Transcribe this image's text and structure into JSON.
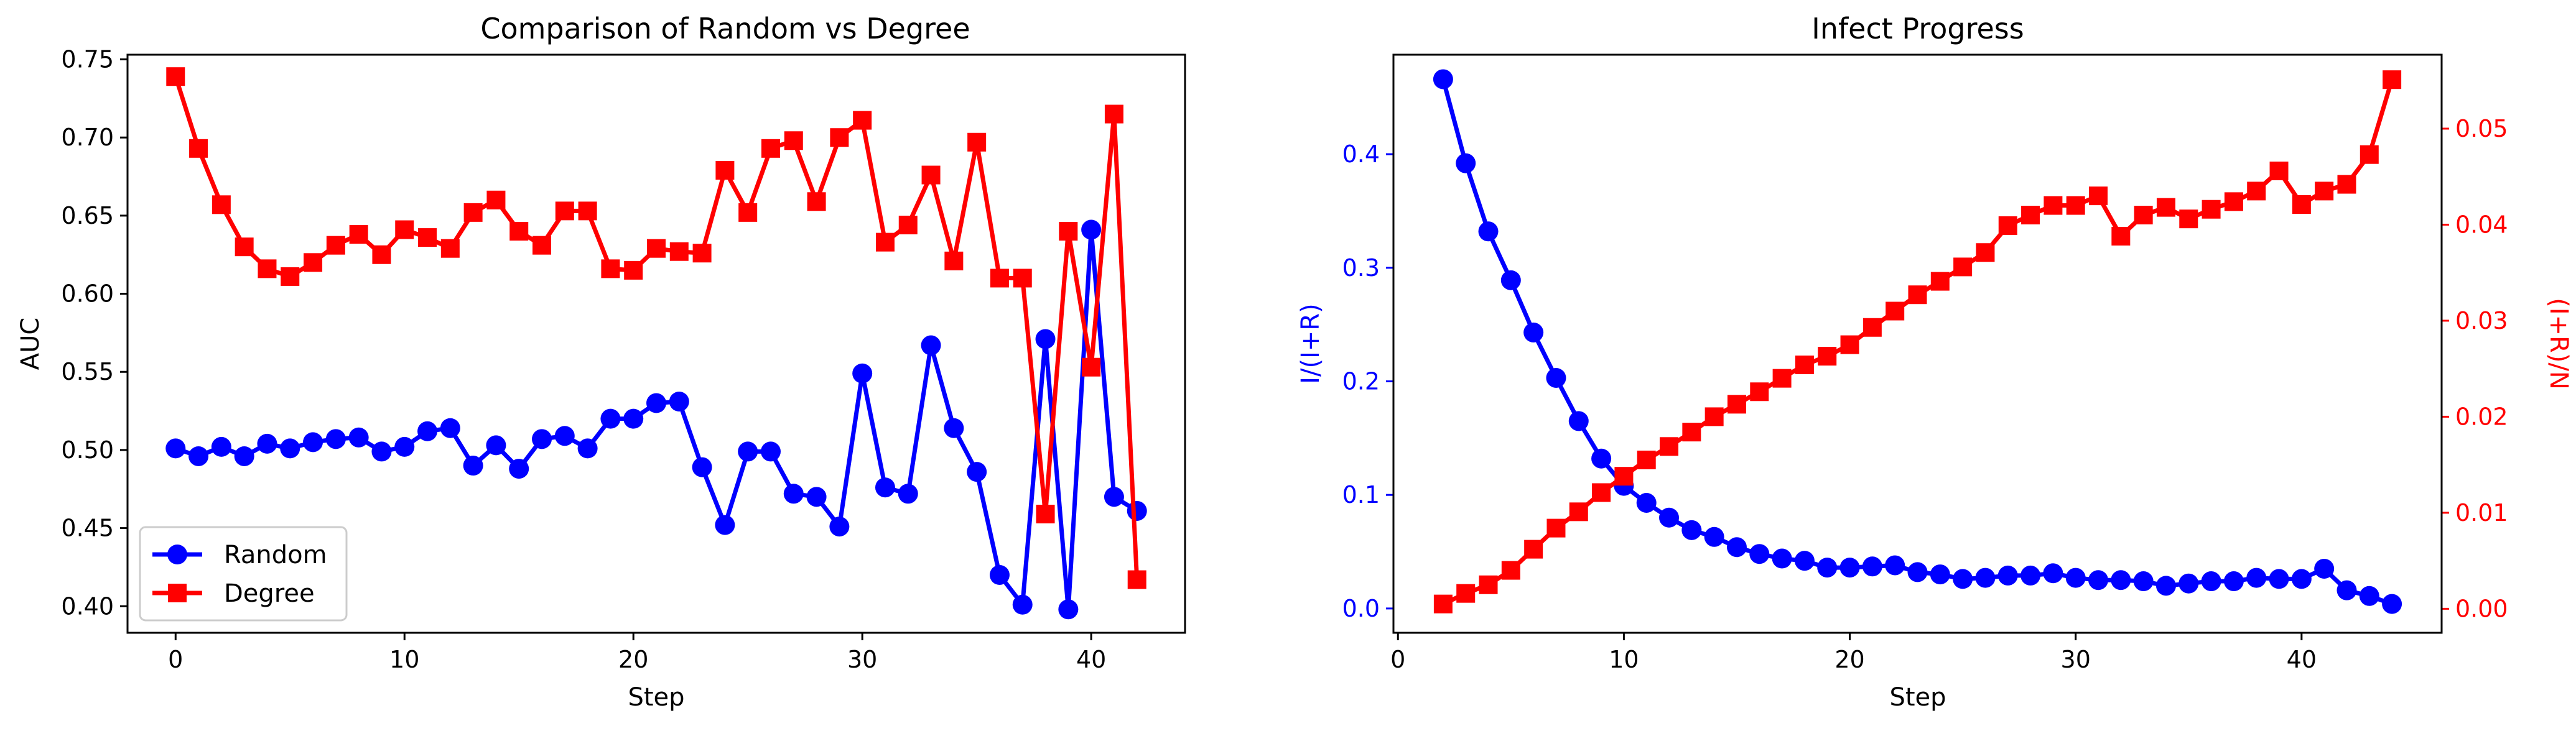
{
  "chart_data": [
    {
      "type": "line",
      "title": "Comparison of Random vs Degree",
      "xlabel": "Step",
      "ylabel": "AUC",
      "xlim": [
        -2.1,
        44.1
      ],
      "ylim": [
        0.383,
        0.753
      ],
      "xticks": [
        0,
        10,
        20,
        30,
        40
      ],
      "yticks": [
        0.4,
        0.45,
        0.5,
        0.55,
        0.6,
        0.65,
        0.7,
        0.75
      ],
      "ytick_labels": [
        "0.40",
        "0.45",
        "0.50",
        "0.55",
        "0.60",
        "0.65",
        "0.70",
        "0.75"
      ],
      "grid": false,
      "legend": "lower-left",
      "x": [
        0,
        1,
        2,
        3,
        4,
        5,
        6,
        7,
        8,
        9,
        10,
        11,
        12,
        13,
        14,
        15,
        16,
        17,
        18,
        19,
        20,
        21,
        22,
        23,
        24,
        25,
        26,
        27,
        28,
        29,
        30,
        31,
        32,
        33,
        34,
        35,
        36,
        37,
        38,
        39,
        40,
        41,
        42
      ],
      "series": [
        {
          "name": "Random",
          "color": "#0000ff",
          "marker": "circle",
          "values": [
            0.501,
            0.496,
            0.502,
            0.496,
            0.504,
            0.501,
            0.505,
            0.507,
            0.508,
            0.499,
            0.502,
            0.512,
            0.514,
            0.49,
            0.503,
            0.488,
            0.507,
            0.509,
            0.501,
            0.52,
            0.52,
            0.53,
            0.531,
            0.489,
            0.452,
            0.499,
            0.499,
            0.472,
            0.47,
            0.451,
            0.549,
            0.476,
            0.472,
            0.567,
            0.514,
            0.486,
            0.42,
            0.401,
            0.571,
            0.398,
            0.641,
            0.47,
            0.461
          ]
        },
        {
          "name": "Degree",
          "color": "#ff0000",
          "marker": "square",
          "values": [
            0.739,
            0.693,
            0.657,
            0.63,
            0.616,
            0.611,
            0.62,
            0.631,
            0.638,
            0.625,
            0.641,
            0.636,
            0.629,
            0.652,
            0.66,
            0.64,
            0.631,
            0.653,
            0.653,
            0.616,
            0.615,
            0.629,
            0.627,
            0.626,
            0.679,
            0.652,
            0.693,
            0.698,
            0.659,
            0.7,
            0.711,
            0.633,
            0.644,
            0.676,
            0.621,
            0.697,
            0.61,
            0.61,
            0.459,
            0.64,
            0.553,
            0.715,
            0.417
          ]
        }
      ]
    },
    {
      "type": "line",
      "title": "Infect Progress",
      "xlabel": "Step",
      "ylabel": "I/(I+R)",
      "ylabel_right": "(I+R)/N",
      "xlim": [
        -0.2,
        46.2
      ],
      "ylim": [
        -0.0214,
        0.4876
      ],
      "ylim_right": [
        -0.0025,
        0.0577
      ],
      "xticks": [
        0,
        10,
        20,
        30,
        40
      ],
      "yticks": [
        0.0,
        0.1,
        0.2,
        0.3,
        0.4
      ],
      "ytick_labels": [
        "0.0",
        "0.1",
        "0.2",
        "0.3",
        "0.4"
      ],
      "yticks_right": [
        0.0,
        0.01,
        0.02,
        0.03,
        0.04,
        0.05
      ],
      "ytick_labels_right": [
        "0.00",
        "0.01",
        "0.02",
        "0.03",
        "0.04",
        "0.05"
      ],
      "grid": false,
      "x": [
        2,
        3,
        4,
        5,
        6,
        7,
        8,
        9,
        10,
        11,
        12,
        13,
        14,
        15,
        16,
        17,
        18,
        19,
        20,
        21,
        22,
        23,
        24,
        25,
        26,
        27,
        28,
        29,
        30,
        31,
        32,
        33,
        34,
        35,
        36,
        37,
        38,
        39,
        40,
        41,
        42,
        43,
        44
      ],
      "series": [
        {
          "axis": "left",
          "color": "#0000ff",
          "marker": "circle",
          "values": [
            0.466,
            0.392,
            0.332,
            0.289,
            0.243,
            0.203,
            0.165,
            0.132,
            0.108,
            0.093,
            0.08,
            0.069,
            0.063,
            0.054,
            0.048,
            0.044,
            0.042,
            0.036,
            0.036,
            0.037,
            0.038,
            0.032,
            0.03,
            0.026,
            0.027,
            0.029,
            0.029,
            0.031,
            0.027,
            0.025,
            0.025,
            0.024,
            0.02,
            0.022,
            0.024,
            0.024,
            0.027,
            0.026,
            0.026,
            0.035,
            0.016,
            0.011,
            0.004
          ]
        },
        {
          "axis": "right",
          "color": "#ff0000",
          "marker": "square",
          "values": [
            0.0005,
            0.0016,
            0.0025,
            0.004,
            0.0062,
            0.0084,
            0.0101,
            0.0121,
            0.0138,
            0.0155,
            0.0169,
            0.0184,
            0.02,
            0.0213,
            0.0226,
            0.024,
            0.0254,
            0.0263,
            0.0275,
            0.0293,
            0.031,
            0.0327,
            0.0341,
            0.0356,
            0.0371,
            0.0399,
            0.041,
            0.042,
            0.042,
            0.043,
            0.0388,
            0.041,
            0.0418,
            0.0406,
            0.0416,
            0.0424,
            0.0435,
            0.0456,
            0.0421,
            0.0435,
            0.0442,
            0.0473,
            0.0551
          ]
        }
      ]
    }
  ]
}
